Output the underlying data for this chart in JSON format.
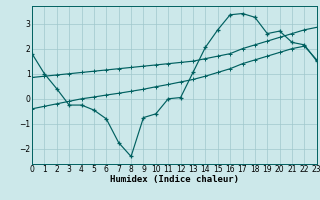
{
  "xlabel": "Humidex (Indice chaleur)",
  "bg_color": "#cce8ea",
  "line_color": "#006060",
  "xlim": [
    0,
    23
  ],
  "ylim": [
    -2.6,
    3.7
  ],
  "yticks": [
    -2,
    -1,
    0,
    1,
    2,
    3
  ],
  "curve1_x": [
    0,
    1,
    2,
    3,
    4,
    5,
    6,
    7,
    8,
    9,
    10,
    11,
    12,
    13,
    14,
    15,
    16,
    17,
    18,
    19,
    20,
    21,
    22,
    23
  ],
  "curve1_y": [
    1.8,
    1.0,
    0.4,
    -0.25,
    -0.25,
    -0.45,
    -0.8,
    -1.75,
    -2.3,
    -0.75,
    -0.6,
    0.0,
    0.05,
    1.05,
    2.05,
    2.75,
    3.35,
    3.4,
    3.25,
    2.6,
    2.7,
    2.25,
    2.15,
    1.5
  ],
  "curve2_x": [
    0,
    1,
    2,
    3,
    4,
    5,
    6,
    7,
    8,
    9,
    10,
    11,
    12,
    13,
    14,
    15,
    16,
    17,
    18,
    19,
    20,
    21,
    22,
    23
  ],
  "curve2_y": [
    0.85,
    0.9,
    0.95,
    1.0,
    1.05,
    1.1,
    1.15,
    1.2,
    1.25,
    1.3,
    1.35,
    1.4,
    1.45,
    1.5,
    1.6,
    1.7,
    1.8,
    2.0,
    2.15,
    2.3,
    2.45,
    2.6,
    2.75,
    2.85
  ],
  "curve3_x": [
    0,
    1,
    2,
    3,
    4,
    5,
    6,
    7,
    8,
    9,
    10,
    11,
    12,
    13,
    14,
    15,
    16,
    17,
    18,
    19,
    20,
    21,
    22,
    23
  ],
  "curve3_y": [
    -0.4,
    -0.3,
    -0.2,
    -0.1,
    0.0,
    0.07,
    0.15,
    0.22,
    0.3,
    0.38,
    0.48,
    0.57,
    0.67,
    0.77,
    0.9,
    1.05,
    1.2,
    1.4,
    1.55,
    1.7,
    1.85,
    2.0,
    2.1,
    1.55
  ],
  "grid_color": "#a0c8cc",
  "label_fontsize": 5.5,
  "xlabel_fontsize": 6.5
}
